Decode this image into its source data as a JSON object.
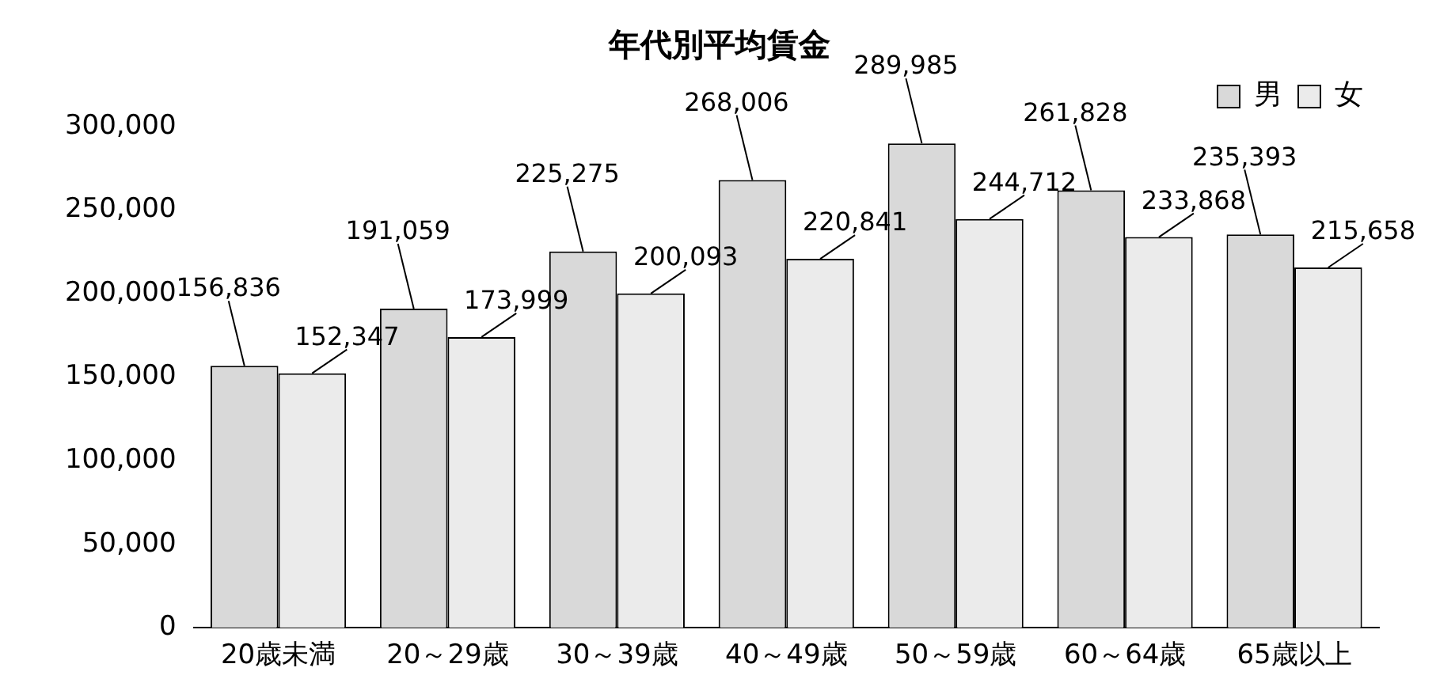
{
  "chart_data": {
    "type": "bar",
    "title": "年代別平均賃金",
    "categories": [
      "20歳未満",
      "20～29歳",
      "30～39歳",
      "40～49歳",
      "50～59歳",
      "60～64歳",
      "65歳以上"
    ],
    "series": [
      {
        "name": "男",
        "color": "#d9d9d9",
        "values": [
          156836,
          191059,
          225275,
          268006,
          289985,
          261828,
          235393
        ],
        "value_labels": [
          "156,836",
          "191,059",
          "225,275",
          "268,006",
          "289,985",
          "261,828",
          "235,393"
        ]
      },
      {
        "name": "女",
        "color": "#ebebeb",
        "values": [
          152347,
          173999,
          200093,
          220841,
          244712,
          233868,
          215658
        ],
        "value_labels": [
          "152,347",
          "173,999",
          "200,093",
          "220,841",
          "244,712",
          "233,868",
          "215,658"
        ]
      }
    ],
    "ylim": [
      0,
      300000
    ],
    "yticks": [
      {
        "value": 0,
        "label": "0"
      },
      {
        "value": 50000,
        "label": "50,000"
      },
      {
        "value": 100000,
        "label": "100,000"
      },
      {
        "value": 150000,
        "label": "150,000"
      },
      {
        "value": 200000,
        "label": "200,000"
      },
      {
        "value": 250000,
        "label": "250,000"
      },
      {
        "value": 300000,
        "label": "300,000"
      }
    ],
    "grid": false,
    "legend": "top right"
  }
}
